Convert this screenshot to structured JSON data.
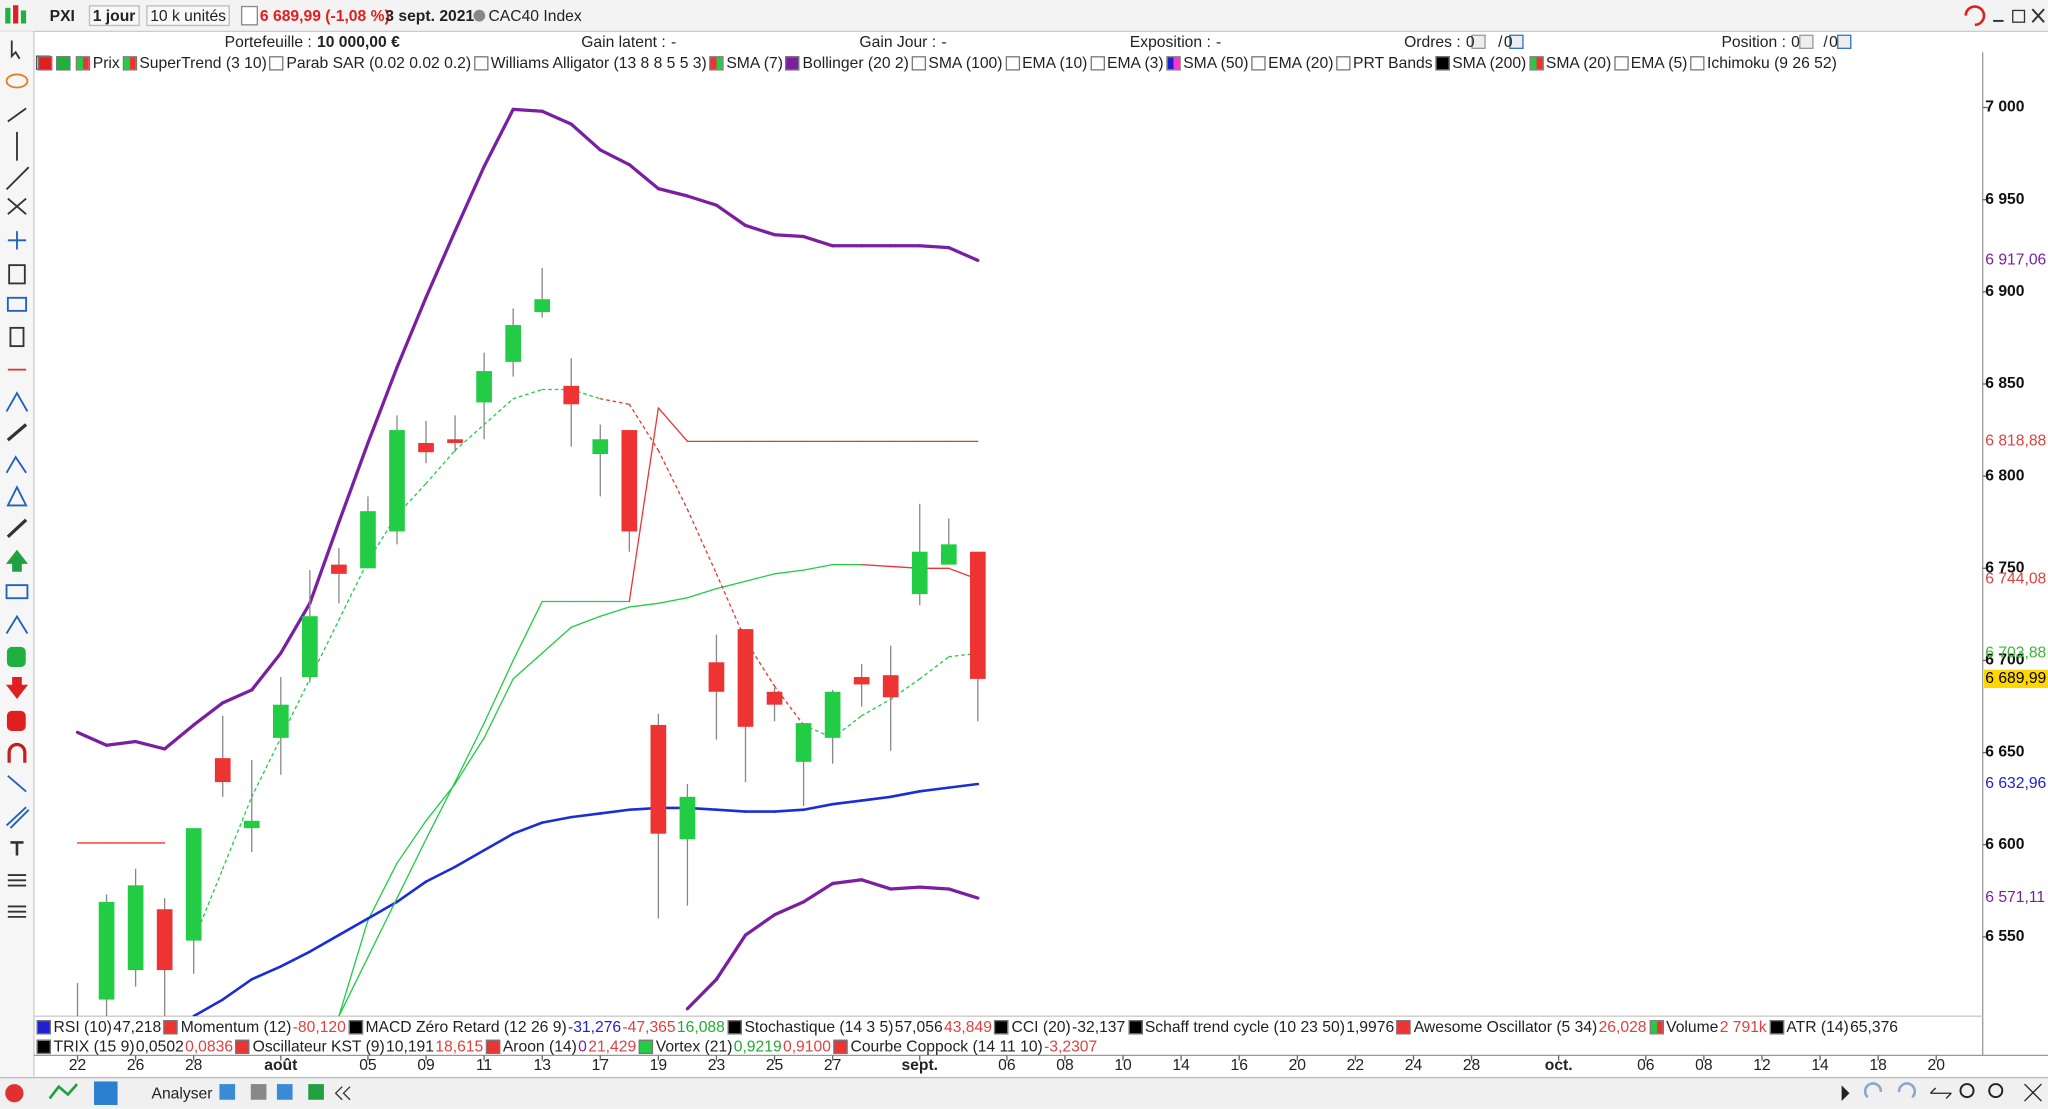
{
  "toolbar": {
    "symbol": "PXI",
    "period": "1 jour",
    "units": "10 k unités",
    "price": "6 689,99 (-1,08 %)",
    "date": "3 sept. 2021",
    "index": "CAC40 Index"
  },
  "account": [
    {
      "label": "Portefeuille :",
      "value": "10 000,00 €"
    },
    {
      "label": "Gain latent :",
      "value": "-"
    },
    {
      "label": "Gain Jour :",
      "value": "-"
    },
    {
      "label": "Exposition :",
      "value": "-"
    },
    {
      "label": "Ordres :",
      "value": "0",
      "value2": "0"
    },
    {
      "label": "Position :",
      "value": "0",
      "value2": "0"
    }
  ],
  "indicators": [
    {
      "name": "Prix",
      "colors": [
        "#22cc44",
        "#ee3333"
      ]
    },
    {
      "name": "SuperTrend (3 10)",
      "colors": [
        "#22cc44",
        "#ee3333"
      ]
    },
    {
      "name": "Parab SAR (0.02 0.02 0.2)",
      "colors": [
        "#ffffff"
      ]
    },
    {
      "name": "Williams Alligator (13 8 8 5 5 3)",
      "colors": [
        "#ffffff"
      ]
    },
    {
      "name": "SMA (7)",
      "colors": [
        "#ee3333",
        "#22cc44"
      ]
    },
    {
      "name": "Bollinger (20 2)",
      "colors": [
        "#7b1fa2"
      ]
    },
    {
      "name": "SMA (100)",
      "colors": [
        "#ffffff"
      ]
    },
    {
      "name": "EMA (10)",
      "colors": [
        "#ffffff"
      ]
    },
    {
      "name": "EMA (3)",
      "colors": [
        "#ffffff"
      ]
    },
    {
      "name": "SMA (50)",
      "colors": [
        "#2020d0",
        "#ff33cc"
      ]
    },
    {
      "name": "EMA (20)",
      "colors": [
        "#ffffff"
      ]
    },
    {
      "name": "PRT Bands",
      "colors": [
        "#ffffff"
      ]
    },
    {
      "name": "SMA (200)",
      "colors": [
        "#000000"
      ]
    },
    {
      "name": "SMA (20)",
      "colors": [
        "#22cc44",
        "#ee3333"
      ]
    },
    {
      "name": "EMA (5)",
      "colors": [
        "#ffffff"
      ]
    },
    {
      "name": "Ichimoku (9 26 52)",
      "colors": [
        "#ffffff"
      ]
    }
  ],
  "oscillators": [
    [
      {
        "name": "RSI (10)",
        "colors": [
          "#2020d0"
        ],
        "values": [
          {
            "text": "47,218",
            "color": "#222222"
          }
        ]
      },
      {
        "name": "Momentum (12)",
        "colors": [
          "#ee3333"
        ],
        "values": [
          {
            "text": "-80,120",
            "color": "#e04040"
          }
        ]
      },
      {
        "name": "MACD Zéro Retard (12 26 9)",
        "colors": [
          "#000000"
        ],
        "values": [
          {
            "text": "-31,276",
            "color": "#2020d0"
          },
          {
            "text": "-47,365",
            "color": "#e04040"
          },
          {
            "text": "16,088",
            "color": "#22aa33"
          }
        ]
      },
      {
        "name": "Stochastique (14 3 5)",
        "colors": [
          "#000000"
        ],
        "values": [
          {
            "text": "57,056",
            "color": "#222222"
          },
          {
            "text": "43,849",
            "color": "#e04040"
          }
        ]
      },
      {
        "name": "CCI (20)",
        "colors": [
          "#000000"
        ],
        "values": [
          {
            "text": "-32,137",
            "color": "#222222"
          }
        ]
      },
      {
        "name": "Schaff trend cycle (10 23 50)",
        "colors": [
          "#000000"
        ],
        "values": [
          {
            "text": "1,9976",
            "color": "#222222"
          }
        ]
      },
      {
        "name": "Awesome Oscillator (5 34)",
        "colors": [
          "#ee3333"
        ],
        "values": [
          {
            "text": "26,028",
            "color": "#e04040"
          }
        ]
      },
      {
        "name": "Volume",
        "colors": [
          "#22cc44",
          "#ee3333"
        ],
        "values": [
          {
            "text": "2 791k",
            "color": "#e04040"
          }
        ]
      },
      {
        "name": "ATR (14)",
        "colors": [
          "#000000"
        ],
        "values": [
          {
            "text": "65,376",
            "color": "#222222"
          }
        ]
      }
    ],
    [
      {
        "name": "TRIX (15 9)",
        "colors": [
          "#000000"
        ],
        "values": [
          {
            "text": "0,0502",
            "color": "#222222"
          },
          {
            "text": "0,0836",
            "color": "#e04040"
          }
        ]
      },
      {
        "name": "Oscillateur KST (9)",
        "colors": [
          "#ee3333"
        ],
        "values": [
          {
            "text": "10,191",
            "color": "#222222"
          },
          {
            "text": "18,615",
            "color": "#e04040"
          }
        ]
      },
      {
        "name": "Aroon (14)",
        "colors": [
          "#ee3333"
        ],
        "values": [
          {
            "text": "0",
            "color": "#7b1fa2"
          },
          {
            "text": "21,429",
            "color": "#e04040"
          }
        ]
      },
      {
        "name": "Vortex (21)",
        "colors": [
          "#22cc44"
        ],
        "values": [
          {
            "text": "0,9219",
            "color": "#22aa33"
          },
          {
            "text": "0,9100",
            "color": "#e04040"
          }
        ]
      },
      {
        "name": "Courbe Coppock (14 11 10)",
        "colors": [
          "#ee3333"
        ],
        "values": [
          {
            "text": "-3,2307",
            "color": "#e04040"
          }
        ]
      }
    ]
  ],
  "bottom": {
    "button": "Analyser"
  },
  "chart_data": {
    "type": "candlestick",
    "x": [
      0,
      1,
      2,
      3,
      4,
      5,
      6,
      7,
      8,
      9,
      10,
      11,
      12,
      13,
      14,
      15,
      16,
      17,
      18,
      19,
      20,
      21,
      22,
      23,
      24,
      25,
      26,
      27,
      28,
      29,
      30,
      31
    ],
    "open": [
      6500,
      6516,
      6532,
      6565,
      6548,
      6647,
      6609,
      6658,
      6691,
      6752,
      6750,
      6770,
      6818,
      6820,
      6840,
      6862,
      6889,
      6849,
      6812,
      6825,
      6665,
      6603,
      6699,
      6717,
      6683,
      6645,
      6658,
      6691,
      6692,
      6736,
      6752,
      6759
    ],
    "high": [
      6525,
      6573,
      6587,
      6571,
      6609,
      6670,
      6646,
      6691,
      6749,
      6761,
      6789,
      6833,
      6830,
      6833,
      6867,
      6891,
      6913,
      6864,
      6828,
      6825,
      6671,
      6633,
      6714,
      6717,
      6685,
      6666,
      6684,
      6698,
      6708,
      6785,
      6777,
      6759
    ],
    "low": [
      6495,
      6505,
      6523,
      6505,
      6530,
      6626,
      6596,
      6638,
      6688,
      6731,
      6750,
      6763,
      6807,
      6813,
      6820,
      6854,
      6886,
      6816,
      6789,
      6759,
      6560,
      6567,
      6657,
      6634,
      6667,
      6621,
      6644,
      6675,
      6651,
      6730,
      6752,
      6667
    ],
    "close": [
      6505,
      6569,
      6578,
      6532,
      6609,
      6634,
      6613,
      6676,
      6724,
      6747,
      6781,
      6825,
      6813,
      6818,
      6857,
      6882,
      6896,
      6839,
      6820,
      6770,
      6606,
      6626,
      6683,
      6664,
      6676,
      6666,
      6683,
      6687,
      6680,
      6759,
      6763,
      6689.99
    ],
    "up_color": "#22cc44",
    "down_color": "#ee3333",
    "series": [
      {
        "color": "#7b1fa2",
        "width": 2.5,
        "values": [
          6661,
          6654,
          6656,
          6652,
          6665,
          6677,
          6684,
          6704,
          6731,
          6775,
          6818,
          6859,
          6897,
          6933,
          6968,
          6999,
          6998,
          6991,
          6977,
          6969,
          6956,
          6952,
          6947,
          6936,
          6931,
          6930,
          6925,
          6925,
          6925,
          6925,
          6924,
          6917.06
        ]
      },
      {
        "color": "#7b1fa2",
        "width": 2.5,
        "values": [
          null,
          null,
          null,
          null,
          null,
          null,
          null,
          null,
          null,
          null,
          null,
          null,
          null,
          null,
          null,
          null,
          null,
          null,
          null,
          null,
          null,
          6511,
          6527,
          6551,
          6562,
          6569,
          6579,
          6581,
          6576,
          6577,
          6576,
          6571.11
        ]
      },
      {
        "color": "#22cc44",
        "width": 1,
        "values": [
          null,
          null,
          null,
          null,
          null,
          null,
          null,
          null,
          null,
          6507,
          6559,
          6590,
          6613,
          6633,
          6658,
          6690,
          6704,
          6718,
          6724,
          6729,
          6731,
          6734,
          6739,
          6743,
          6747,
          6749,
          6752,
          6752,
          6751,
          6750,
          6750,
          6744.08
        ],
        "colors": [
          null,
          null,
          null,
          null,
          null,
          null,
          null,
          null,
          null,
          "#22cc44",
          "#22cc44",
          "#22cc44",
          "#22cc44",
          "#22cc44",
          "#22cc44",
          "#22cc44",
          "#22cc44",
          "#22cc44",
          "#22cc44",
          "#22cc44",
          "#22cc44",
          "#22cc44",
          "#22cc44",
          "#22cc44",
          "#22cc44",
          "#22cc44",
          "#22cc44",
          "#22cc44",
          "#ee3333",
          "#ee3333",
          "#ee3333",
          "#ee3333"
        ]
      },
      {
        "color": "#1a2ed8",
        "width": 2,
        "values": [
          null,
          null,
          null,
          null,
          6507,
          6516,
          6527,
          6534,
          6542,
          6551,
          6560,
          6569,
          6580,
          6588,
          6597,
          6606,
          6612,
          6615,
          6617,
          6619,
          6620,
          6620,
          6619,
          6618,
          6618,
          6619,
          6622,
          6624,
          6626,
          6629,
          6631,
          6632.96
        ]
      },
      {
        "color": "#22cc44",
        "width": 1,
        "values": [
          6601,
          6601,
          6601,
          6601,
          null,
          null,
          null,
          null,
          null,
          6507,
          6539,
          6571,
          6603,
          6634,
          6666,
          6700,
          6732,
          6732,
          6732,
          6732,
          6837,
          6818.88,
          6818.88,
          6818.88,
          6818.88,
          6818.88,
          6818.88,
          6818.88,
          6818.88,
          6818.88,
          6818.88,
          6818.88
        ],
        "colors": [
          "#ee3333",
          "#ee3333",
          "#ee3333",
          "#ee3333",
          null,
          null,
          null,
          null,
          null,
          "#22cc44",
          "#22cc44",
          "#22cc44",
          "#22cc44",
          "#22cc44",
          "#22cc44",
          "#22cc44",
          "#22cc44",
          "#22cc44",
          "#22cc44",
          "#22cc44",
          "#ee3333",
          "#ee3333",
          "#ee3333",
          "#ee3333",
          "#ee3333",
          "#ee3333",
          "#ee3333",
          "#ee3333",
          "#ee3333",
          "#ee3333",
          "#ee3333",
          "#ee3333"
        ]
      },
      {
        "color": "#22cc44",
        "width": 1,
        "dashed": true,
        "values": [
          null,
          null,
          null,
          null,
          6548,
          6587,
          6626,
          6658,
          6690,
          6722,
          6754,
          6779,
          6796,
          6814,
          6828,
          6842,
          6847,
          6847,
          6842,
          6839,
          6814,
          6782,
          6747,
          6711,
          6686,
          6665,
          6658,
          6670,
          6679,
          6690,
          6702,
          6703.88
        ],
        "colors": [
          null,
          null,
          null,
          null,
          "#22cc44",
          "#22cc44",
          "#22cc44",
          "#22cc44",
          "#22cc44",
          "#22cc44",
          "#22cc44",
          "#22cc44",
          "#22cc44",
          "#22cc44",
          "#22cc44",
          "#22cc44",
          "#22cc44",
          "#22cc44",
          "#22cc44",
          "#ee3333",
          "#ee3333",
          "#ee3333",
          "#ee3333",
          "#ee3333",
          "#ee3333",
          "#ee3333",
          "#22cc44",
          "#22cc44",
          "#22cc44",
          "#22cc44",
          "#22cc44",
          "#22cc44"
        ]
      }
    ],
    "ylim": [
      6507,
      7030
    ],
    "yticks": [
      {
        "value": 6550,
        "label": "6 550"
      },
      {
        "value": 6600,
        "label": "6 600"
      },
      {
        "value": 6650,
        "label": "6 650"
      },
      {
        "value": 6700,
        "label": "6 700"
      },
      {
        "value": 6750,
        "label": "6 750"
      },
      {
        "value": 6800,
        "label": "6 800"
      },
      {
        "value": 6850,
        "label": "6 850"
      },
      {
        "value": 6900,
        "label": "6 900"
      },
      {
        "value": 6950,
        "label": "6 950"
      },
      {
        "value": 7000,
        "label": "7 000"
      }
    ],
    "xlim": [
      -1.5,
      65.6
    ],
    "xticks": [
      {
        "value": 0,
        "label": "22"
      },
      {
        "value": 2,
        "label": "26"
      },
      {
        "value": 4,
        "label": "28"
      },
      {
        "value": 7,
        "label": "août"
      },
      {
        "value": 10,
        "label": "05"
      },
      {
        "value": 12,
        "label": "09"
      },
      {
        "value": 14,
        "label": "11"
      },
      {
        "value": 16,
        "label": "13"
      },
      {
        "value": 18,
        "label": "17"
      },
      {
        "value": 20,
        "label": "19"
      },
      {
        "value": 22,
        "label": "23"
      },
      {
        "value": 24,
        "label": "25"
      },
      {
        "value": 26,
        "label": "27"
      },
      {
        "value": 29,
        "label": "sept."
      },
      {
        "value": 32,
        "label": "06"
      },
      {
        "value": 34,
        "label": "08"
      },
      {
        "value": 36,
        "label": "10"
      },
      {
        "value": 38,
        "label": "14"
      },
      {
        "value": 40,
        "label": "16"
      },
      {
        "value": 42,
        "label": "20"
      },
      {
        "value": 44,
        "label": "22"
      },
      {
        "value": 46,
        "label": "24"
      },
      {
        "value": 48,
        "label": "28"
      },
      {
        "value": 51,
        "label": "oct."
      },
      {
        "value": 54,
        "label": "06"
      },
      {
        "value": 56,
        "label": "08"
      },
      {
        "value": 58,
        "label": "12"
      },
      {
        "value": 60,
        "label": "14"
      },
      {
        "value": 62,
        "label": "18"
      },
      {
        "value": 64,
        "label": "20"
      }
    ],
    "price_labels": [
      {
        "value": 6917.06,
        "label": "6 917,06",
        "color": "#7b1fa2"
      },
      {
        "value": 6818.88,
        "label": "6 818,88",
        "color": "#e04040"
      },
      {
        "value": 6744.08,
        "label": "6 744,08",
        "color": "#e04040"
      },
      {
        "value": 6703.88,
        "label": "6 703,88",
        "color": "#33bb33"
      },
      {
        "value": 6689.99,
        "label": "6 689,99",
        "color": "#000000",
        "background": "#ffd700"
      },
      {
        "value": 6632.96,
        "label": "6 632,96",
        "color": "#2020d0"
      },
      {
        "value": 6571.11,
        "label": "6 571,11",
        "color": "#7b1fa2"
      }
    ]
  }
}
